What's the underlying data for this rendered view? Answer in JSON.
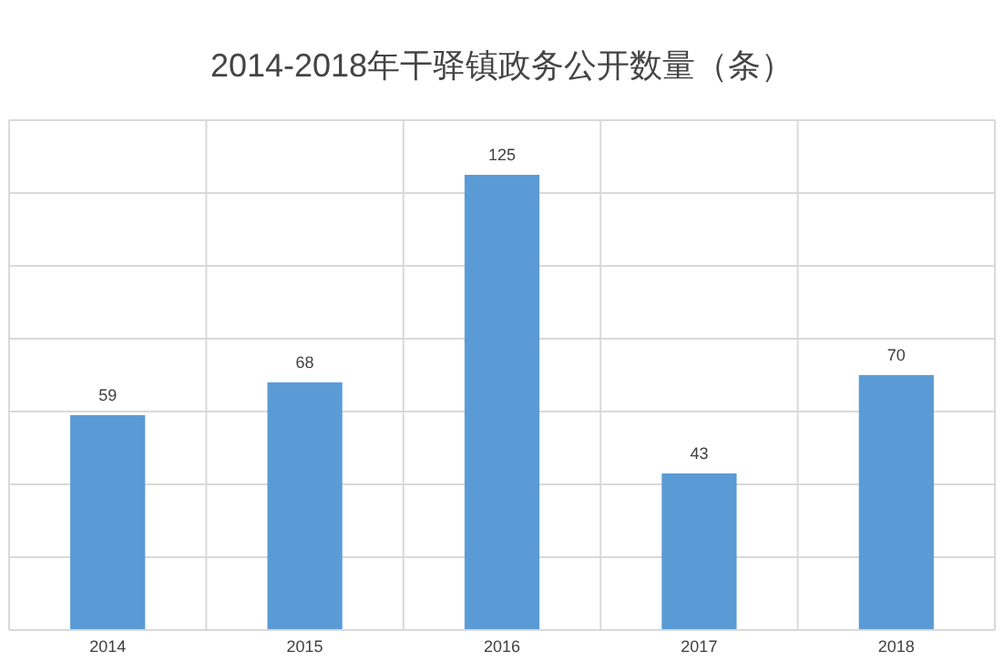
{
  "chart_data": {
    "type": "bar",
    "title": "2014-2018年干驿镇政务公开数量（条）",
    "categories": [
      "2014",
      "2015",
      "2016",
      "2017",
      "2018"
    ],
    "values": [
      59,
      68,
      125,
      43,
      70
    ],
    "color": "#5b9bd5",
    "data_labels": true,
    "ylim": [
      0,
      140
    ],
    "yticks": [
      {
        "value": 0,
        "label": null
      },
      {
        "value": 20,
        "label": null
      },
      {
        "value": 40,
        "label": null
      },
      {
        "value": 60,
        "label": null
      },
      {
        "value": 80,
        "label": null
      },
      {
        "value": 100,
        "label": null
      },
      {
        "value": 120,
        "label": null
      },
      {
        "value": 140,
        "label": null
      }
    ],
    "grid": true
  }
}
